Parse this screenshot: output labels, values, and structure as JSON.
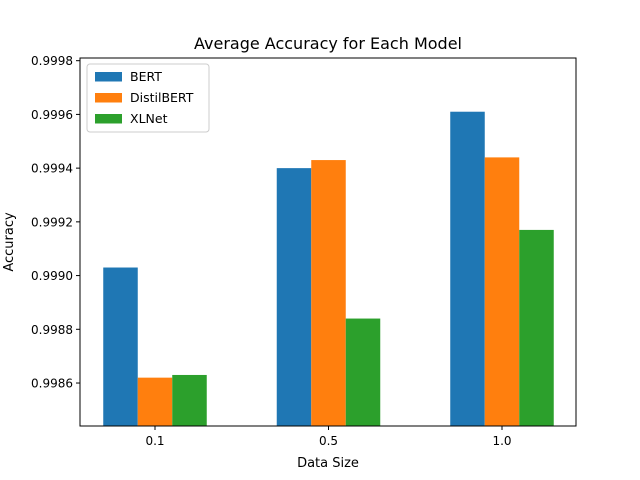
{
  "chart_data": {
    "type": "bar",
    "title": "Average Accuracy for Each Model",
    "xlabel": "Data Size",
    "ylabel": "Accuracy",
    "categories": [
      "0.1",
      "0.5",
      "1.0"
    ],
    "series": [
      {
        "name": "BERT",
        "color": "#1f77b4",
        "values": [
          0.99903,
          0.9994,
          0.99961
        ]
      },
      {
        "name": "DistilBERT",
        "color": "#ff7f0e",
        "values": [
          0.99862,
          0.99943,
          0.99944
        ]
      },
      {
        "name": "XLNet",
        "color": "#2ca02c",
        "values": [
          0.99863,
          0.99884,
          0.99917
        ]
      }
    ],
    "ylim": [
      0.99844,
      0.99981
    ],
    "yticks": [
      0.9986,
      0.9988,
      0.999,
      0.9992,
      0.9994,
      0.9996,
      0.9998
    ],
    "ytick_labels": [
      "0.9986",
      "0.9988",
      "0.9990",
      "0.9992",
      "0.9994",
      "0.9996",
      "0.9998"
    ],
    "grid": false,
    "legend_position": "top-left"
  }
}
